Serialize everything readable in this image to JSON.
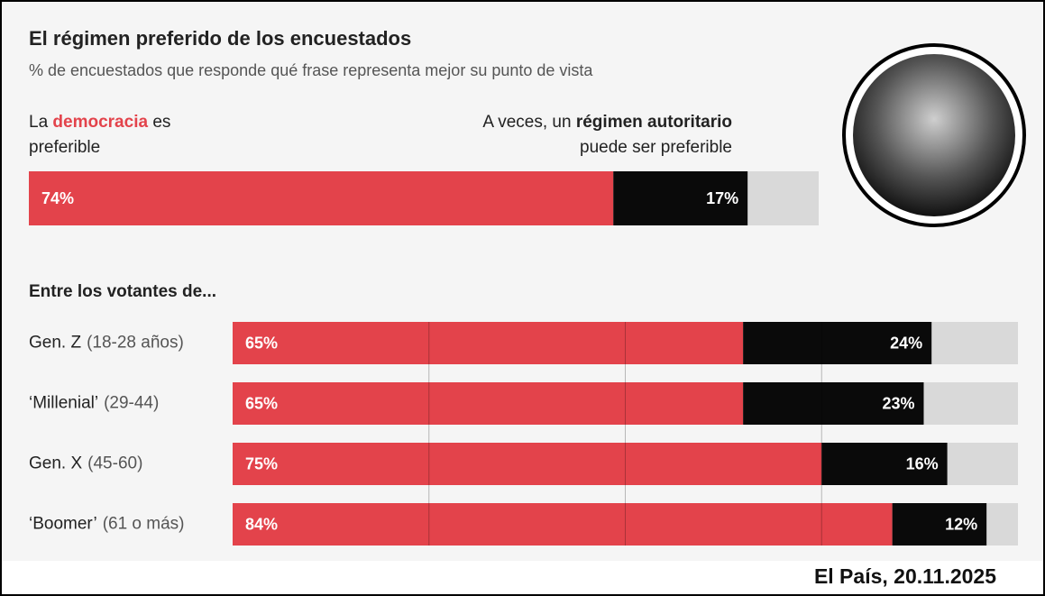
{
  "chart_data": [
    {
      "type": "stacked_bar",
      "title": "El régimen preferido de los encuestados",
      "subtitle": "% de encuestados que responde qué frase representa mejor su punto de vista",
      "legend": {
        "left": {
          "pre": "La",
          "highlight": "democracia",
          "post": "es",
          "line2": "preferible"
        },
        "right": {
          "pre": "A veces, un",
          "highlight": "régimen autoritario",
          "line2": "puede ser preferible"
        }
      },
      "categories": [
        null
      ],
      "xlim": [
        0,
        100
      ],
      "series": [
        {
          "color": "#e3434b",
          "values": [
            74
          ],
          "value_labels": [
            "74%"
          ]
        },
        {
          "color": "#0a0a0a",
          "values": [
            17
          ],
          "value_labels": [
            "17%"
          ]
        }
      ]
    },
    {
      "type": "stacked_bar",
      "title": "Entre los votantes de...",
      "categories": [
        "Gen. Z",
        "‘Millenial’",
        "Gen. X",
        "‘Boomer’"
      ],
      "category_notes": [
        "(18-28 años)",
        "(29-44)",
        "(45-60)",
        "(61 o más)"
      ],
      "xlim": [
        0,
        100
      ],
      "xticks": [
        25,
        50,
        75
      ],
      "grid": true,
      "series": [
        {
          "color": "#e3434b",
          "values": [
            65,
            65,
            75,
            84
          ],
          "value_labels": [
            "65%",
            "65%",
            "75%",
            "84%"
          ]
        },
        {
          "color": "#0a0a0a",
          "values": [
            24,
            23,
            16,
            12
          ],
          "value_labels": [
            "24%",
            "23%",
            "16%",
            "12%"
          ]
        }
      ]
    }
  ],
  "source": "El País, 20.11.2025"
}
